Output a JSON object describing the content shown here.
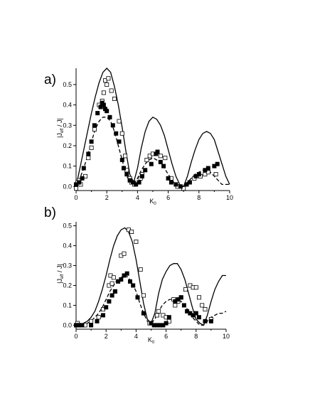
{
  "chart_data": [
    {
      "type": "scatter",
      "panel_label": "a)",
      "xlabel": "K",
      "xlabel_sub": "0",
      "ylabel_parts": [
        "|J",
        "eff",
        " / J|"
      ],
      "xlim": [
        0,
        10
      ],
      "ylim": [
        -0.02,
        0.58
      ],
      "xticks": [
        "0",
        "2",
        "4",
        "6",
        "8",
        "10"
      ],
      "yticks": [
        "0.0",
        "0.1",
        "0.2",
        "0.3",
        "0.4",
        "0.5"
      ],
      "series": [
        {
          "style": "solid-line",
          "x": [
            0,
            0.25,
            0.5,
            0.75,
            1,
            1.25,
            1.5,
            1.75,
            2,
            2.25,
            2.5,
            2.75,
            3,
            3.25,
            3.5,
            3.75,
            4,
            4.25,
            4.5,
            4.75,
            5,
            5.25,
            5.5,
            5.75,
            6,
            6.25,
            6.5,
            6.75,
            7,
            7.25,
            7.5,
            7.75,
            8,
            8.25,
            8.5,
            8.75,
            9,
            9.25,
            9.5,
            9.75,
            10
          ],
          "y": [
            0,
            0.09,
            0.18,
            0.27,
            0.36,
            0.44,
            0.51,
            0.56,
            0.58,
            0.56,
            0.49,
            0.4,
            0.29,
            0.17,
            0.06,
            0.02,
            0.09,
            0.19,
            0.27,
            0.32,
            0.34,
            0.33,
            0.3,
            0.25,
            0.18,
            0.11,
            0.05,
            0.01,
            0.0,
            0.05,
            0.12,
            0.18,
            0.23,
            0.26,
            0.27,
            0.26,
            0.23,
            0.17,
            0.11,
            0.05,
            0.01
          ]
        },
        {
          "style": "dashed-line",
          "x": [
            0,
            0.25,
            0.5,
            0.75,
            1,
            1.25,
            1.5,
            1.75,
            2,
            2.25,
            2.5,
            2.75,
            3,
            3.25,
            3.5,
            3.75,
            4,
            4.25,
            4.5,
            4.75,
            5,
            5.25,
            5.5,
            5.75,
            6,
            6.25,
            6.5,
            6.75,
            7,
            7.25,
            7.5,
            7.75,
            8,
            8.25,
            8.5,
            8.75,
            9,
            9.25,
            9.5,
            9.75,
            10
          ],
          "y": [
            0,
            0.04,
            0.09,
            0.15,
            0.22,
            0.28,
            0.32,
            0.34,
            0.34,
            0.32,
            0.27,
            0.2,
            0.13,
            0.06,
            0.02,
            0.01,
            0.04,
            0.08,
            0.11,
            0.13,
            0.14,
            0.13,
            0.12,
            0.09,
            0.06,
            0.03,
            0.01,
            0.0,
            0.0,
            0.02,
            0.04,
            0.06,
            0.07,
            0.08,
            0.08,
            0.07,
            0.05,
            0.03,
            0.01,
            0.01,
            0.01
          ]
        },
        {
          "style": "open-square",
          "x": [
            0,
            0.1,
            0.2,
            0.3,
            0.6,
            0.8,
            1.0,
            1.2,
            1.5,
            1.6,
            1.7,
            1.8,
            1.9,
            2.0,
            2.1,
            2.3,
            2.5,
            2.8,
            3.0,
            3.2,
            3.3,
            3.5,
            3.6,
            3.8,
            4.2,
            4.3,
            4.6,
            4.8,
            5.0,
            5.5,
            5.8,
            6.2,
            6.6,
            7.0,
            7.4,
            7.7,
            8.1,
            8.4,
            8.6,
            9.1
          ],
          "y": [
            -0.01,
            0.02,
            0.03,
            0.01,
            0.05,
            0.14,
            0.19,
            0.28,
            0.4,
            0.39,
            0.42,
            0.46,
            0.52,
            0.5,
            0.53,
            0.47,
            0.43,
            0.32,
            0.26,
            0.15,
            0.08,
            0.04,
            0.02,
            0.01,
            0.04,
            0.06,
            0.13,
            0.15,
            0.16,
            0.15,
            0.14,
            0.04,
            0.0,
            -0.01,
            0.02,
            0.04,
            0.05,
            0.06,
            0.07,
            0.06
          ]
        },
        {
          "style": "filled-square",
          "x": [
            0,
            0.2,
            0.4,
            0.5,
            0.8,
            1.0,
            1.2,
            1.4,
            1.6,
            1.7,
            1.8,
            1.9,
            2.0,
            2.2,
            2.4,
            2.6,
            2.8,
            3.0,
            3.1,
            3.3,
            3.5,
            3.7,
            3.9,
            4.1,
            4.3,
            4.5,
            4.9,
            5.2,
            5.3,
            5.5,
            5.7,
            6.0,
            6.2,
            6.5,
            6.8,
            7.2,
            7.4,
            7.8,
            8.0,
            8.4,
            8.6,
            9.0,
            9.2
          ],
          "y": [
            0.01,
            0.02,
            0.04,
            0.09,
            0.16,
            0.22,
            0.3,
            0.36,
            0.39,
            0.41,
            0.4,
            0.38,
            0.37,
            0.34,
            0.3,
            0.26,
            0.22,
            0.13,
            0.09,
            0.06,
            0.03,
            0.02,
            0.01,
            0.02,
            0.05,
            0.08,
            0.11,
            0.16,
            0.17,
            0.12,
            0.1,
            0.04,
            0.02,
            0.01,
            0.0,
            0.01,
            0.02,
            0.05,
            0.06,
            0.08,
            0.09,
            0.1,
            0.11
          ]
        }
      ]
    },
    {
      "type": "scatter",
      "panel_label": "b)",
      "xlabel": "K",
      "xlabel_sub": "0",
      "ylabel_parts": [
        "|J",
        "eff",
        " / J|"
      ],
      "xlim": [
        0,
        10
      ],
      "ylim": [
        -0.02,
        0.52
      ],
      "xticks": [
        "0",
        "2",
        "4",
        "6",
        "8",
        "10"
      ],
      "yticks": [
        "0.0",
        "0.1",
        "0.2",
        "0.3",
        "0.4",
        "0.5"
      ],
      "series": [
        {
          "style": "solid-line",
          "x": [
            0,
            0.25,
            0.5,
            0.75,
            1,
            1.25,
            1.5,
            1.75,
            2,
            2.25,
            2.5,
            2.75,
            3,
            3.25,
            3.5,
            3.75,
            4,
            4.25,
            4.5,
            4.75,
            5,
            5.25,
            5.5,
            5.75,
            6,
            6.25,
            6.5,
            6.75,
            7,
            7.25,
            7.5,
            7.75,
            8,
            8.25,
            8.5,
            8.75,
            9,
            9.25,
            9.5,
            9.75,
            10
          ],
          "y": [
            0,
            0.0,
            0.01,
            0.02,
            0.04,
            0.07,
            0.12,
            0.18,
            0.25,
            0.33,
            0.4,
            0.45,
            0.48,
            0.49,
            0.47,
            0.42,
            0.33,
            0.22,
            0.11,
            0.03,
            0.01,
            0.06,
            0.16,
            0.23,
            0.27,
            0.3,
            0.31,
            0.31,
            0.28,
            0.23,
            0.16,
            0.09,
            0.03,
            0.01,
            0.0,
            0.05,
            0.12,
            0.18,
            0.22,
            0.25,
            0.25
          ]
        },
        {
          "style": "dashed-line",
          "x": [
            0,
            0.25,
            0.5,
            0.75,
            1,
            1.25,
            1.5,
            1.75,
            2,
            2.25,
            2.5,
            2.75,
            3,
            3.25,
            3.5,
            3.75,
            4,
            4.25,
            4.5,
            4.75,
            5,
            5.25,
            5.5,
            5.75,
            6,
            6.25,
            6.5,
            6.75,
            7,
            7.25,
            7.5,
            7.75,
            8,
            8.25,
            8.5,
            8.75,
            9,
            9.25,
            9.5,
            9.75,
            10
          ],
          "y": [
            0,
            0.0,
            0.0,
            0.01,
            0.02,
            0.04,
            0.06,
            0.09,
            0.13,
            0.17,
            0.2,
            0.23,
            0.24,
            0.25,
            0.24,
            0.21,
            0.17,
            0.11,
            0.06,
            0.02,
            0.01,
            0.03,
            0.07,
            0.1,
            0.12,
            0.13,
            0.13,
            0.13,
            0.12,
            0.1,
            0.07,
            0.04,
            0.02,
            0.0,
            0.0,
            0.02,
            0.04,
            0.05,
            0.06,
            0.06,
            0.07
          ]
        },
        {
          "style": "open-square",
          "x": [
            0,
            0.1,
            0.2,
            0.6,
            1.0,
            1.5,
            1.8,
            2.2,
            2.3,
            2.4,
            2.5,
            2.6,
            3.0,
            3.2,
            3.5,
            3.7,
            4.0,
            4.3,
            4.5,
            4.9,
            5.4,
            5.5,
            5.8,
            6.0,
            6.2,
            6.5,
            6.6,
            6.8,
            7.0,
            7.3,
            7.6,
            7.8,
            8.0,
            8.2,
            8.4,
            8.6,
            9.0
          ],
          "y": [
            0.0,
            0.01,
            0.0,
            0.0,
            0.02,
            0.04,
            0.08,
            0.2,
            0.25,
            0.21,
            0.24,
            0.17,
            0.35,
            0.36,
            0.48,
            0.47,
            0.42,
            0.28,
            0.15,
            0.01,
            0.05,
            0.07,
            0.05,
            0.04,
            0.02,
            0.13,
            0.1,
            0.12,
            0.14,
            0.18,
            0.2,
            0.19,
            0.19,
            0.14,
            0.1,
            0.08,
            0.03
          ]
        },
        {
          "style": "filled-square",
          "x": [
            0,
            0.2,
            0.4,
            1.0,
            1.4,
            1.8,
            2.0,
            2.2,
            2.4,
            2.6,
            2.8,
            3.0,
            3.2,
            3.4,
            3.6,
            3.8,
            4.1,
            4.5,
            5.0,
            5.2,
            5.4,
            5.6,
            5.8,
            6.0,
            6.2,
            6.6,
            6.8,
            7.0,
            7.2,
            7.4,
            7.6,
            7.8,
            8.0,
            8.2,
            8.6,
            9.0
          ],
          "y": [
            0.0,
            0.0,
            0.0,
            0.0,
            0.02,
            0.05,
            0.09,
            0.12,
            0.15,
            0.17,
            0.22,
            0.23,
            0.25,
            0.26,
            0.22,
            0.2,
            0.14,
            0.06,
            0.01,
            0.0,
            0.0,
            0.0,
            0.0,
            0.01,
            0.04,
            0.12,
            0.13,
            0.14,
            0.1,
            0.07,
            0.06,
            0.05,
            0.06,
            0.04,
            0.02,
            0.02
          ]
        }
      ]
    }
  ]
}
